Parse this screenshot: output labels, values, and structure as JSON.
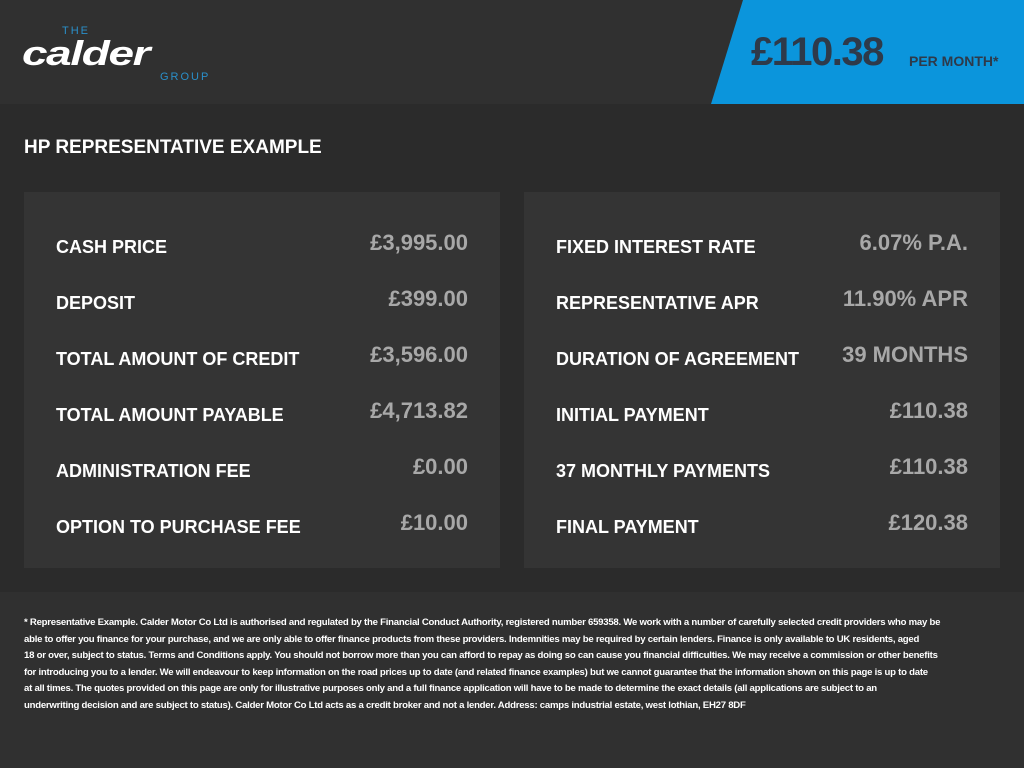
{
  "header": {
    "logo": {
      "the": "THE",
      "name": "calder",
      "group": "GROUP"
    },
    "monthly_price": "£110.38",
    "per_month_label": "PER MONTH*",
    "colors": {
      "accent": "#0b95dc",
      "background": "#303030"
    }
  },
  "title": "HP REPRESENTATIVE EXAMPLE",
  "left_panel": [
    {
      "label": "CASH PRICE",
      "value": "£3,995.00"
    },
    {
      "label": "DEPOSIT",
      "value": "£399.00"
    },
    {
      "label": "TOTAL AMOUNT OF CREDIT",
      "value": "£3,596.00"
    },
    {
      "label": "TOTAL AMOUNT PAYABLE",
      "value": "£4,713.82"
    },
    {
      "label": "ADMINISTRATION FEE",
      "value": "£0.00"
    },
    {
      "label": "OPTION TO PURCHASE FEE",
      "value": "£10.00"
    }
  ],
  "right_panel": [
    {
      "label": "FIXED INTEREST RATE",
      "value": "6.07% P.A."
    },
    {
      "label": "REPRESENTATIVE APR",
      "value": "11.90% APR"
    },
    {
      "label": "DURATION OF AGREEMENT",
      "value": "39 MONTHS"
    },
    {
      "label": "INITIAL PAYMENT",
      "value": "£110.38"
    },
    {
      "label": "37 MONTHLY PAYMENTS",
      "value": "£110.38"
    },
    {
      "label": "FINAL PAYMENT",
      "value": "£120.38"
    }
  ],
  "footer": {
    "lines": [
      "* Representative Example. Calder Motor Co Ltd is authorised and regulated by the Financial Conduct Authority, registered number 659358. We work with a number of carefully selected credit providers who may be",
      "able to offer you finance for your purchase, and we are only able to offer finance products from these providers. Indemnities may be required by certain lenders. Finance is only available to UK residents, aged",
      "18 or over, subject to status. Terms and Conditions apply. You should not borrow more than you can afford to repay as doing so can cause you financial difficulties. We may receive a commission or other benefits",
      "for introducing you to a lender. We will endeavour to keep information on the road prices up to date (and related finance examples) but we cannot guarantee that the information shown on this page is up to date",
      "at all times. The quotes provided on this page are only for illustrative purposes only and a full finance application will have to be made to determine the exact details (all applications are subject to an",
      "underwriting decision and are subject to status). Calder Motor Co Ltd acts as a credit broker and not a lender. Address: camps industrial estate, west lothian, EH27 8DF"
    ]
  }
}
